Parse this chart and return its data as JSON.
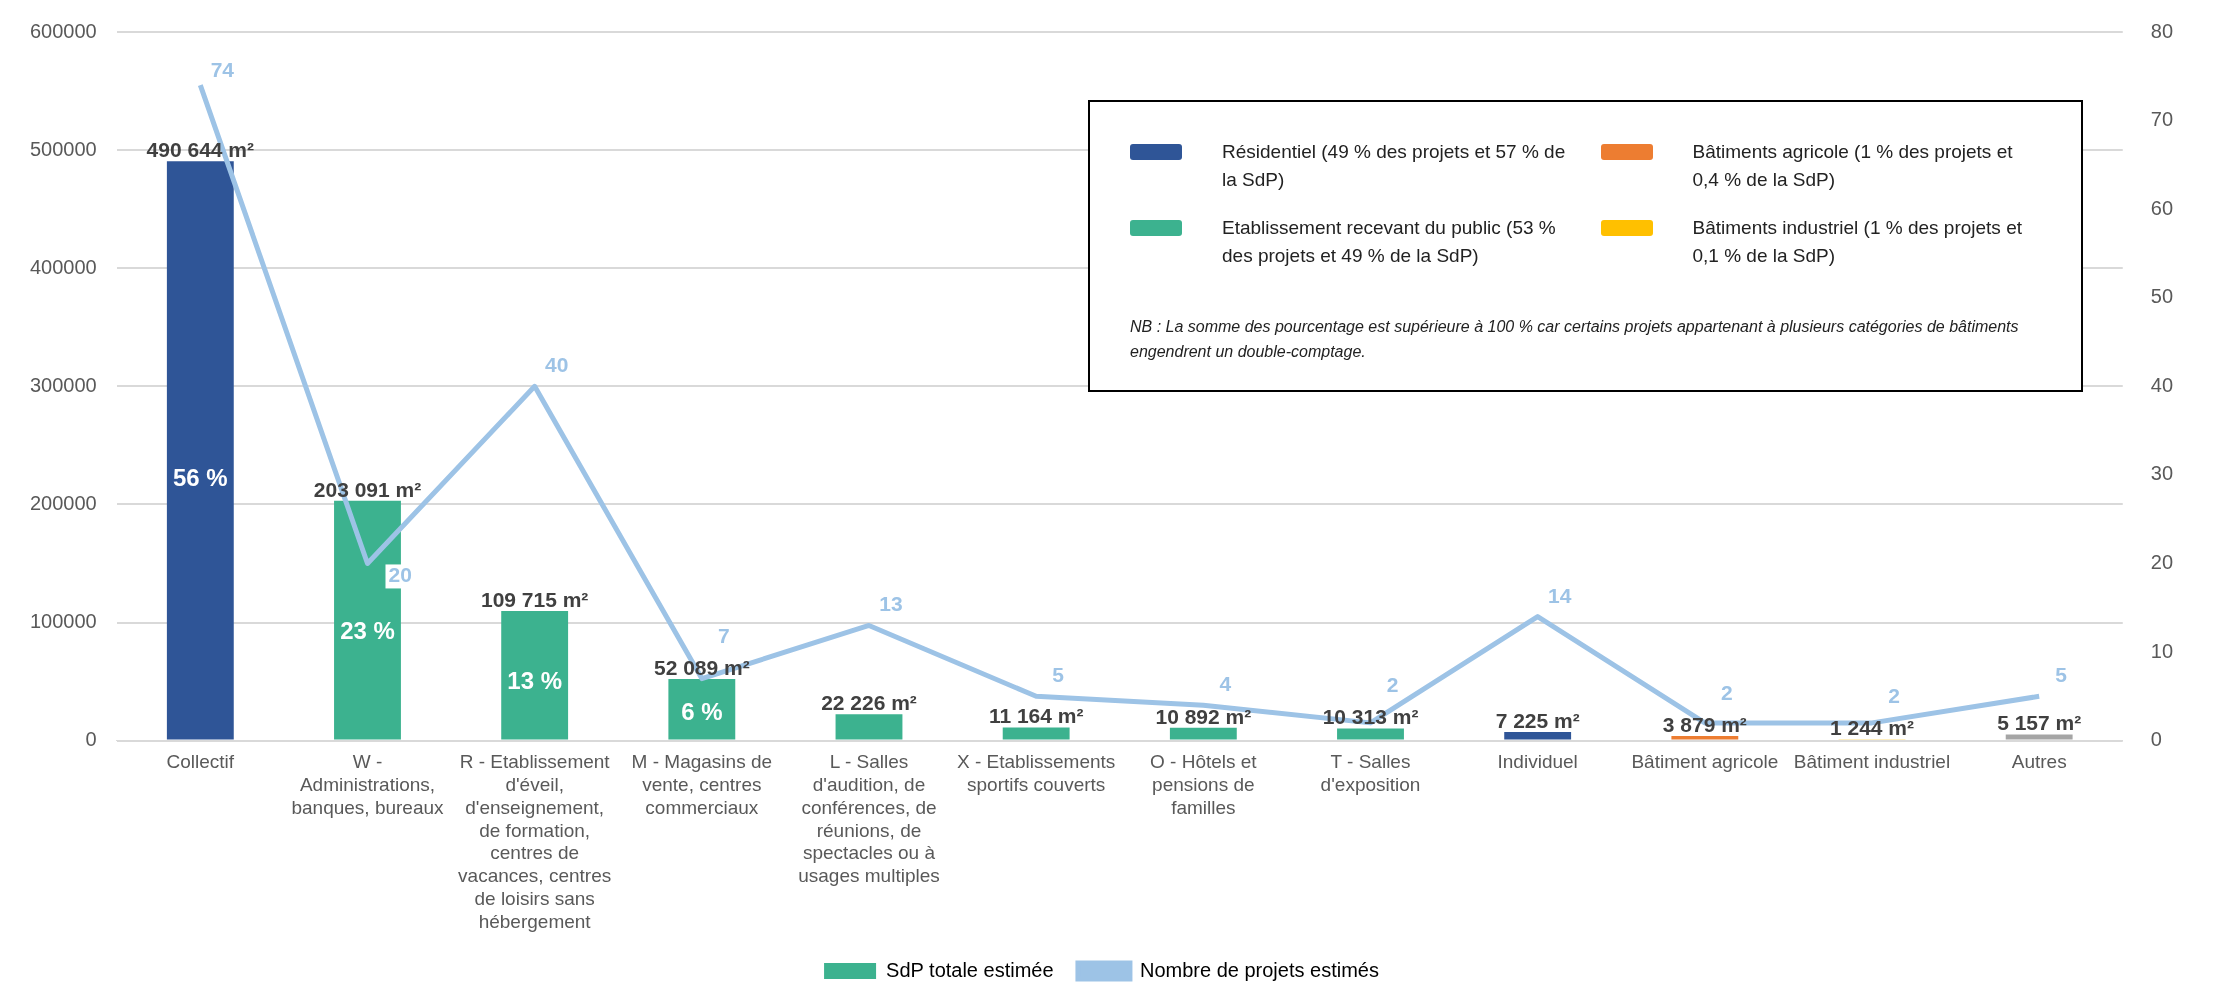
{
  "chart_data": {
    "type": "bar",
    "categories": [
      "Collectif",
      "W - Administrations, banques, bureaux",
      "R - Etablissement d'éveil, d'enseignement, de formation, centres de vacances, centres de loisirs sans hébergement",
      "M - Magasins de vente, centres commerciaux",
      "L - Salles d'audition, de conférences, de réunions, de spectacles ou à usages multiples",
      "X - Etablissements sportifs couverts",
      "O - Hôtels et pensions de familles",
      "T - Salles d'exposition",
      "Individuel",
      "Bâtiment agricole",
      "Bâtiment industriel",
      "Autres"
    ],
    "series": [
      {
        "name": "SdP totale estimée",
        "color": "#3cb28f",
        "colors": [
          "#2f5597",
          "#3cb28f",
          "#3cb28f",
          "#3cb28f",
          "#3cb28f",
          "#3cb28f",
          "#3cb28f",
          "#3cb28f",
          "#2f5597",
          "#ed7d31",
          "#ffc000",
          "#a5a5a5"
        ],
        "values": [
          490644,
          203091,
          109715,
          52089,
          22226,
          11164,
          10892,
          10313,
          7225,
          3879,
          1244,
          5157
        ],
        "value_labels": [
          "490 644 m²",
          "203 091 m²",
          "109 715 m²",
          "52 089 m²",
          "22 226 m²",
          "11 164 m²",
          "10 892 m²",
          "10 313 m²",
          "7 225 m²",
          "3 879 m²",
          "1 244 m²",
          "5 157 m²"
        ]
      },
      {
        "name": "Nombre de projets estimés",
        "type": "line",
        "axis": "y2",
        "color": "#9dc3e6",
        "values": [
          74,
          20,
          40,
          7,
          13,
          5,
          4,
          2,
          14,
          2,
          2,
          5
        ],
        "value_labels": [
          "74",
          "20",
          "40",
          "7",
          "13",
          "5",
          "4",
          "2",
          "14",
          "2",
          "2",
          "5"
        ]
      }
    ],
    "ylim": [
      0,
      600000
    ],
    "yticks": [
      0,
      100000,
      200000,
      300000,
      400000,
      500000,
      600000
    ],
    "y2lim": [
      0,
      80
    ],
    "y2ticks": [
      0,
      10,
      20,
      30,
      40,
      50,
      60,
      70,
      80
    ],
    "grid": "y",
    "legend": "bottom",
    "marker": "none",
    "line_style": "solid",
    "annotations": [
      "Résidentiel (49 % des projets et 57 % de la SdP)",
      "Etablissement recevant du public (53 % des projets et 49 % de la SdP)",
      "Bâtiments agricole (1 % des projets et 0,4 % de la SdP)",
      "Bâtiments industriel (1 % des projets et 0,1 % de la SdP)",
      "NB : La somme des pourcentage est supérieure à 100 % car certains projets appartenant à plusieurs catégories de bâtiments engendrent un double-comptage.",
      "56 %",
      "23 %",
      "13 %",
      "6 %"
    ]
  }
}
